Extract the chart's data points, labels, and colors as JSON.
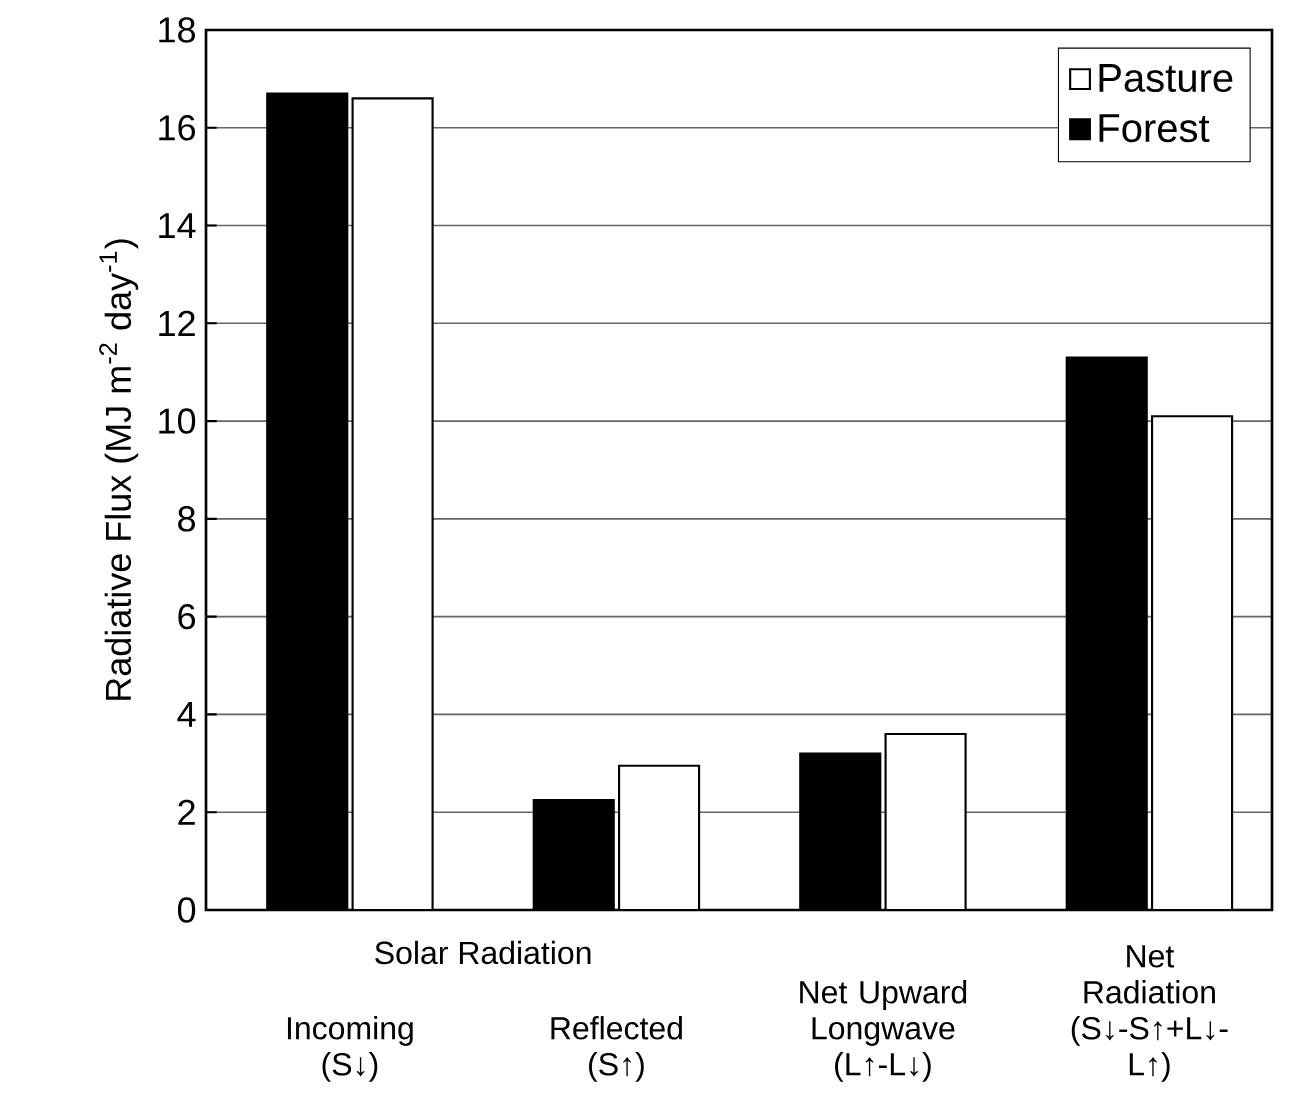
{
  "chart_data": {
    "type": "bar",
    "ylabel": "Radiative Flux (MJ m$^{-2}$ day$^{-1}$)",
    "categories": [
      "Incoming (S↓)",
      "Reflected (S↑)",
      "Net Upward Longwave (L↑-L↓)",
      "Net Radiation (S↓-S↑+L↓-L↑)"
    ],
    "series": [
      {
        "name": "Forest",
        "color": "#000000",
        "values": [
          16.7,
          2.25,
          3.2,
          11.3
        ]
      },
      {
        "name": "Pasture",
        "color": "#ffffff",
        "values": [
          16.6,
          2.95,
          3.6,
          10.1
        ]
      }
    ],
    "annotations": [
      "Solar Radiation"
    ],
    "ylim": [
      0,
      18
    ],
    "yticks": [
      0,
      2,
      4,
      6,
      8,
      10,
      12,
      14,
      16,
      18
    ],
    "grid": "y",
    "legend": "top right"
  }
}
